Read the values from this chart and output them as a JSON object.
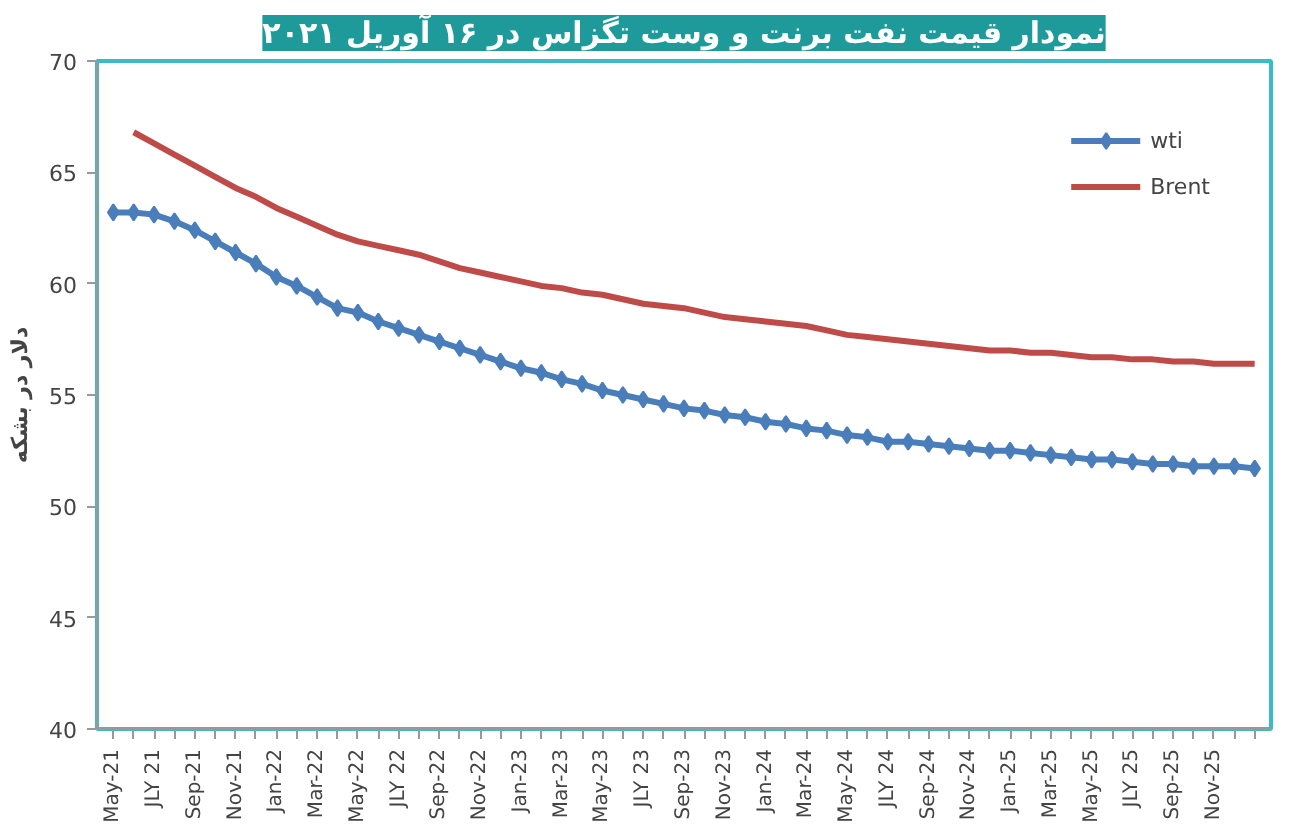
{
  "chart_data": {
    "type": "line",
    "title": "نمودار قیمت نفت برنت و وست تگزاس در ۱۶ آوریل ۲۰۲۱",
    "ylabel": "دلار در بشکه",
    "categories": [
      "May-21",
      null,
      "JLY 21",
      null,
      "Sep-21",
      null,
      "Nov-21",
      null,
      "Jan-22",
      null,
      "Mar-22",
      null,
      "May-22",
      null,
      "JLY 22",
      null,
      "Sep-22",
      null,
      "Nov-22",
      null,
      "Jan-23",
      null,
      "Mar-23",
      null,
      "May-23",
      null,
      "JLY 23",
      null,
      "Sep-23",
      null,
      "Nov-23",
      null,
      "Jan-24",
      null,
      "Mar-24",
      null,
      "May-24",
      null,
      "JLY 24",
      null,
      "Sep-24",
      null,
      "Nov-24",
      null,
      "Jan-25",
      null,
      "Mar-25",
      null,
      "May-25",
      null,
      "JLY 25",
      null,
      "Sep-25",
      null,
      "Nov-25",
      null,
      null
    ],
    "series": [
      {
        "name": "wti",
        "color": "#4a7ebb",
        "marker": "diamond",
        "values": [
          63.2,
          63.2,
          63.1,
          62.8,
          62.4,
          61.9,
          61.4,
          60.9,
          60.3,
          59.9,
          59.4,
          58.9,
          58.7,
          58.3,
          58.0,
          57.7,
          57.4,
          57.1,
          56.8,
          56.5,
          56.2,
          56.0,
          55.7,
          55.5,
          55.2,
          55.0,
          54.8,
          54.6,
          54.4,
          54.3,
          54.1,
          54.0,
          53.8,
          53.7,
          53.5,
          53.4,
          53.2,
          53.1,
          52.9,
          52.9,
          52.8,
          52.7,
          52.6,
          52.5,
          52.5,
          52.4,
          52.3,
          52.2,
          52.1,
          52.1,
          52.0,
          51.9,
          51.9,
          51.8,
          51.8,
          51.8,
          51.7
        ]
      },
      {
        "name": "Brent",
        "color": "#be4b48",
        "marker": "none",
        "values": [
          null,
          66.8,
          66.3,
          65.8,
          65.3,
          64.8,
          64.3,
          63.9,
          63.4,
          63.0,
          62.6,
          62.2,
          61.9,
          61.7,
          61.5,
          61.3,
          61.0,
          60.7,
          60.5,
          60.3,
          60.1,
          59.9,
          59.8,
          59.6,
          59.5,
          59.3,
          59.1,
          59.0,
          58.9,
          58.7,
          58.5,
          58.4,
          58.3,
          58.2,
          58.1,
          57.9,
          57.7,
          57.6,
          57.5,
          57.4,
          57.3,
          57.2,
          57.1,
          57.0,
          57.0,
          56.9,
          56.9,
          56.8,
          56.7,
          56.7,
          56.6,
          56.6,
          56.5,
          56.5,
          56.4,
          56.4,
          56.4
        ]
      }
    ],
    "ylim": [
      40,
      70
    ],
    "yticks": [
      40,
      45,
      50,
      55,
      60,
      65,
      70
    ],
    "legend": "top right"
  }
}
